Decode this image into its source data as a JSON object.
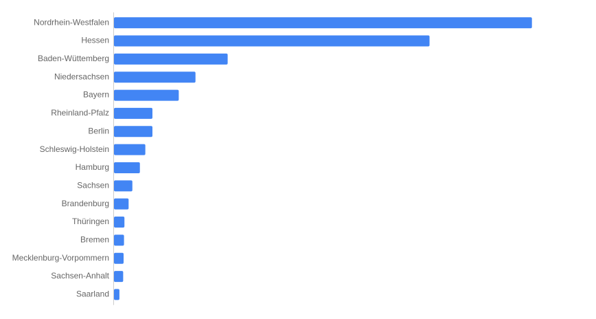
{
  "chart_data": {
    "type": "bar",
    "orientation": "horizontal",
    "title": "",
    "xlabel": "",
    "ylabel": "",
    "categories": [
      "Nordrhein-Westfalen",
      "Hessen",
      "Baden-Wüttemberg",
      "Niedersachsen",
      "Bayern",
      "Rheinland-Pfalz",
      "Berlin",
      "Schleswig-Holstein",
      "Hamburg",
      "Sachsen",
      "Brandenburg",
      "Thüringen",
      "Bremen",
      "Mecklenburg-Vorpommern",
      "Sachsen-Anhalt",
      "Saarland"
    ],
    "values": [
      1000,
      755,
      272,
      195,
      155,
      92,
      92,
      75,
      62,
      44,
      35,
      25,
      24,
      23,
      22,
      13
    ],
    "xlim": [
      0,
      1150
    ],
    "grid": false,
    "legend": "none",
    "bar_color": "#4285f4",
    "label_color": "#666666",
    "axis_color": "#cccccc"
  }
}
